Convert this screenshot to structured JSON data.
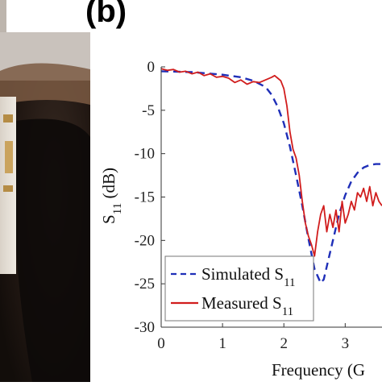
{
  "panel_label": "(b)",
  "colors": {
    "simulated": "#1f2fb8",
    "measured": "#d11d1d",
    "axis": "#333333"
  },
  "chart_data": {
    "type": "line",
    "title": "",
    "xlabel": "Frequency (G",
    "ylabel_main": "S",
    "ylabel_sub": "11",
    "ylabel_unit": " (dB)",
    "xlim": [
      0,
      3.6
    ],
    "ylim": [
      -30,
      0
    ],
    "xticks": [
      0,
      1,
      2,
      3
    ],
    "yticks": [
      0,
      -5,
      -10,
      -15,
      -20,
      -25,
      -30
    ],
    "grid": false,
    "legend_position": "bottom-left",
    "series": [
      {
        "name": "Simulated S",
        "name_sub": "11",
        "style": "dashed",
        "x": [
          0,
          0.5,
          1.0,
          1.3,
          1.5,
          1.7,
          1.8,
          1.9,
          2.0,
          2.1,
          2.2,
          2.3,
          2.4,
          2.5,
          2.6,
          2.65,
          2.7,
          2.8,
          2.9,
          3.0,
          3.1,
          3.2,
          3.3,
          3.4,
          3.5,
          3.6
        ],
        "y": [
          -0.5,
          -0.6,
          -0.9,
          -1.2,
          -1.6,
          -2.3,
          -3.2,
          -4.6,
          -6.5,
          -9.2,
          -12.5,
          -16.0,
          -19.8,
          -23.3,
          -24.9,
          -24.5,
          -23.0,
          -20.0,
          -17.0,
          -14.8,
          -13.2,
          -12.2,
          -11.6,
          -11.3,
          -11.2,
          -11.2
        ]
      },
      {
        "name": "Measured S",
        "name_sub": "11",
        "style": "solid",
        "x": [
          0,
          0.1,
          0.2,
          0.3,
          0.4,
          0.5,
          0.6,
          0.7,
          0.8,
          0.9,
          1.0,
          1.1,
          1.2,
          1.3,
          1.4,
          1.5,
          1.6,
          1.7,
          1.8,
          1.85,
          1.9,
          1.95,
          2.0,
          2.05,
          2.1,
          2.15,
          2.2,
          2.25,
          2.3,
          2.35,
          2.4,
          2.45,
          2.5,
          2.55,
          2.6,
          2.65,
          2.7,
          2.75,
          2.8,
          2.85,
          2.9,
          2.95,
          3.0,
          3.05,
          3.1,
          3.15,
          3.2,
          3.25,
          3.3,
          3.35,
          3.4,
          3.45,
          3.5,
          3.55,
          3.6
        ],
        "y": [
          -0.2,
          -0.4,
          -0.3,
          -0.6,
          -0.5,
          -0.8,
          -0.6,
          -1.0,
          -0.8,
          -1.2,
          -1.1,
          -1.3,
          -1.8,
          -1.5,
          -2.0,
          -1.7,
          -1.8,
          -1.5,
          -1.2,
          -1.0,
          -1.3,
          -1.6,
          -2.5,
          -4.5,
          -7.5,
          -9.5,
          -10.5,
          -12.5,
          -15.5,
          -18.0,
          -19.5,
          -20.5,
          -21.8,
          -19.0,
          -17.0,
          -16.0,
          -19.0,
          -17.0,
          -18.5,
          -16.5,
          -19.0,
          -15.5,
          -18.0,
          -17.0,
          -15.5,
          -16.5,
          -14.5,
          -15.0,
          -14.0,
          -15.5,
          -13.8,
          -16.0,
          -14.5,
          -15.5,
          -16.0
        ]
      }
    ]
  }
}
